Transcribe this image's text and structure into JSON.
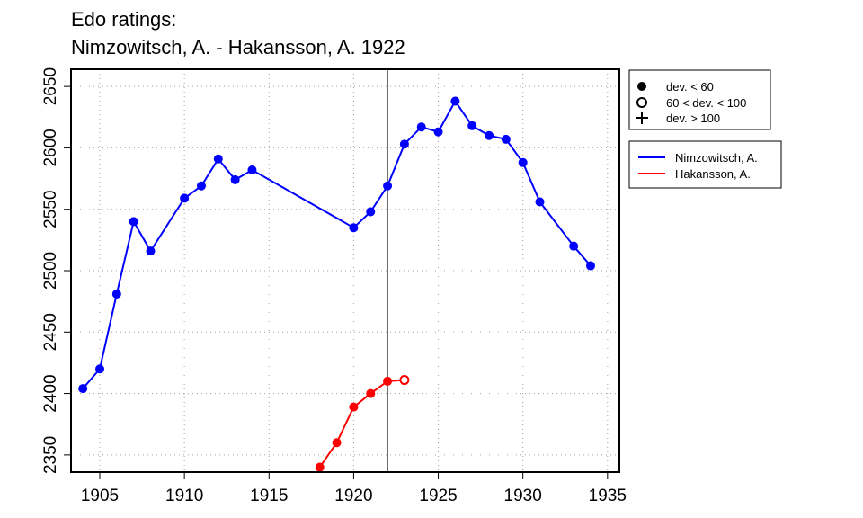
{
  "chart_data": {
    "type": "line",
    "title_line1": "Edo ratings:",
    "title_line2": "Nimzowitsch, A. - Hakansson, A. 1922",
    "xlabel": "",
    "ylabel": "",
    "xlim": [
      1903.3,
      1935.7
    ],
    "ylim": [
      2336,
      2664
    ],
    "x_ticks": [
      1905,
      1910,
      1915,
      1920,
      1925,
      1930,
      1935
    ],
    "y_ticks": [
      2350,
      2400,
      2450,
      2500,
      2550,
      2600,
      2650
    ],
    "grid": true,
    "vertical_marker_x": 1922,
    "symbol_legend": {
      "placement": "top-right",
      "entries": [
        {
          "symbol": "filled-circle",
          "label": "dev. < 60"
        },
        {
          "symbol": "open-circle",
          "label": "60 < dev. < 100"
        },
        {
          "symbol": "plus",
          "label": "dev. > 100"
        }
      ]
    },
    "series": [
      {
        "name": "Nimzowitsch, A.",
        "color": "#0000ff",
        "points": [
          {
            "x": 1904,
            "y": 2404,
            "dev": "low"
          },
          {
            "x": 1905,
            "y": 2420,
            "dev": "low"
          },
          {
            "x": 1906,
            "y": 2481,
            "dev": "low"
          },
          {
            "x": 1907,
            "y": 2540,
            "dev": "low"
          },
          {
            "x": 1908,
            "y": 2516,
            "dev": "low"
          },
          {
            "x": 1910,
            "y": 2559,
            "dev": "low"
          },
          {
            "x": 1911,
            "y": 2569,
            "dev": "low"
          },
          {
            "x": 1912,
            "y": 2591,
            "dev": "low"
          },
          {
            "x": 1913,
            "y": 2574,
            "dev": "low"
          },
          {
            "x": 1914,
            "y": 2582,
            "dev": "low"
          },
          {
            "x": 1920,
            "y": 2535,
            "dev": "low"
          },
          {
            "x": 1921,
            "y": 2548,
            "dev": "low"
          },
          {
            "x": 1922,
            "y": 2569,
            "dev": "low"
          },
          {
            "x": 1923,
            "y": 2603,
            "dev": "low"
          },
          {
            "x": 1924,
            "y": 2617,
            "dev": "low"
          },
          {
            "x": 1925,
            "y": 2613,
            "dev": "low"
          },
          {
            "x": 1926,
            "y": 2638,
            "dev": "low"
          },
          {
            "x": 1927,
            "y": 2618,
            "dev": "low"
          },
          {
            "x": 1928,
            "y": 2610,
            "dev": "low"
          },
          {
            "x": 1929,
            "y": 2607,
            "dev": "low"
          },
          {
            "x": 1930,
            "y": 2588,
            "dev": "low"
          },
          {
            "x": 1931,
            "y": 2556,
            "dev": "low"
          },
          {
            "x": 1933,
            "y": 2520,
            "dev": "low"
          },
          {
            "x": 1934,
            "y": 2504,
            "dev": "low"
          }
        ]
      },
      {
        "name": "Hakansson, A.",
        "color": "#ff0000",
        "points": [
          {
            "x": 1918,
            "y": 2340,
            "dev": "low"
          },
          {
            "x": 1919,
            "y": 2360,
            "dev": "low"
          },
          {
            "x": 1920,
            "y": 2389,
            "dev": "low"
          },
          {
            "x": 1921,
            "y": 2400,
            "dev": "low"
          },
          {
            "x": 1922,
            "y": 2410,
            "dev": "low"
          },
          {
            "x": 1923,
            "y": 2411,
            "dev": "mid"
          }
        ]
      }
    ]
  }
}
